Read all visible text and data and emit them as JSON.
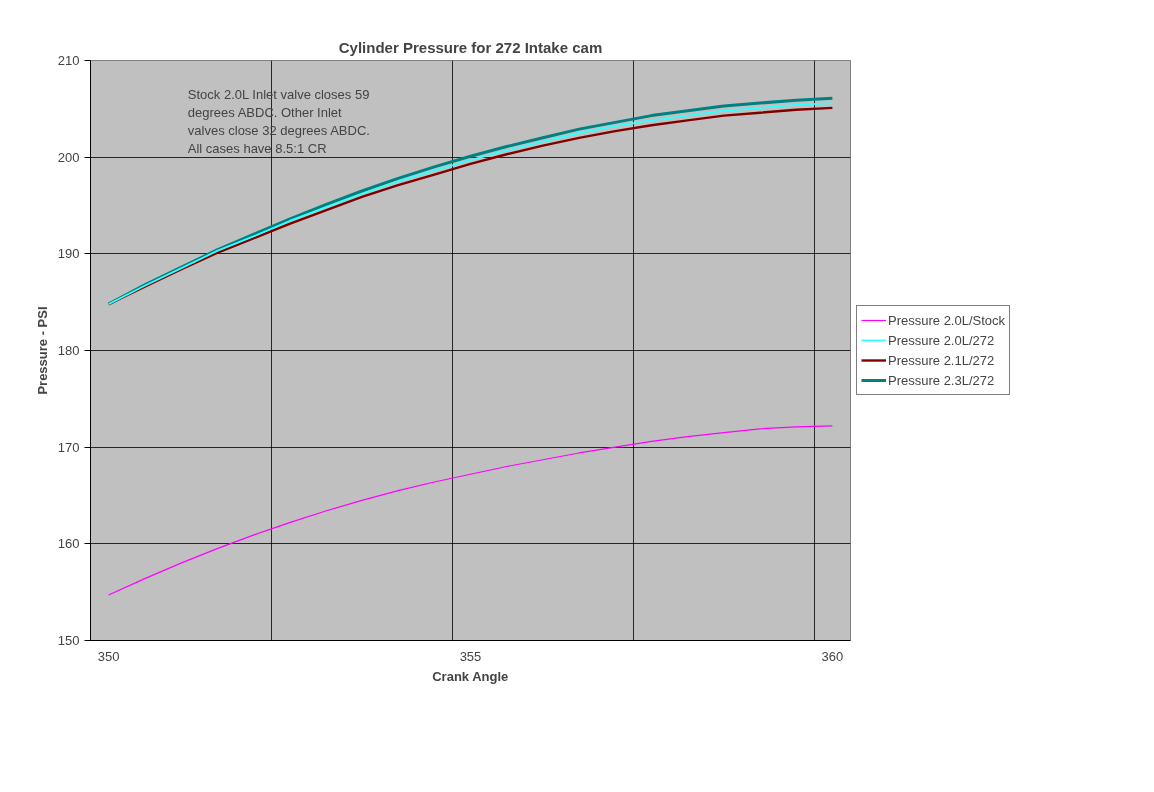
{
  "chart_data": {
    "type": "line",
    "title": "Cylinder Pressure for 272 Intake cam",
    "xlabel": "Crank Angle",
    "ylabel": "Pressure - PSI",
    "x": [
      350,
      350.5,
      351,
      351.5,
      352,
      352.5,
      353,
      353.5,
      354,
      354.5,
      355,
      355.5,
      356,
      356.5,
      357,
      357.5,
      358,
      358.5,
      359,
      359.5,
      360
    ],
    "series": [
      {
        "name": "Pressure 2.0L/Stock",
        "color": "#ff00ff",
        "values": [
          154.7,
          156.4,
          158.0,
          159.5,
          160.9,
          162.2,
          163.4,
          164.5,
          165.5,
          166.4,
          167.2,
          168.0,
          168.7,
          169.4,
          170.0,
          170.6,
          171.1,
          171.5,
          171.9,
          172.1,
          172.2
        ]
      },
      {
        "name": "Pressure 2.0L/272",
        "color": "#33ffff",
        "values": [
          184.8,
          186.7,
          188.5,
          190.3,
          191.8,
          193.4,
          194.8,
          196.2,
          197.5,
          198.6,
          199.7,
          200.7,
          201.6,
          202.5,
          203.2,
          203.8,
          204.3,
          204.8,
          205.1,
          205.4,
          205.6
        ]
      },
      {
        "name": "Pressure 2.1L/272",
        "color": "#800000",
        "values": [
          184.8,
          186.6,
          188.4,
          190.1,
          191.6,
          193.1,
          194.5,
          195.9,
          197.1,
          198.2,
          199.3,
          200.3,
          201.2,
          202.0,
          202.7,
          203.3,
          203.8,
          204.3,
          204.6,
          204.9,
          205.1
        ]
      },
      {
        "name": "Pressure 2.3L/272",
        "color": "#008080",
        "values": [
          184.8,
          186.8,
          188.6,
          190.4,
          192.0,
          193.6,
          195.1,
          196.5,
          197.8,
          199.0,
          200.1,
          201.1,
          202.0,
          202.9,
          203.6,
          204.3,
          204.8,
          205.3,
          205.6,
          205.9,
          206.1
        ]
      }
    ],
    "xlim": [
      349.75,
      360.25
    ],
    "xticks": [
      {
        "value": 350,
        "label": "350"
      },
      {
        "value": 352.25,
        "label": null
      },
      {
        "value": 354.75,
        "label": null
      },
      {
        "value": 355,
        "label": "355"
      },
      {
        "value": 357.25,
        "label": null
      },
      {
        "value": 359.75,
        "label": null
      },
      {
        "value": 360,
        "label": "360"
      }
    ],
    "ylim": [
      150,
      210
    ],
    "yticks": [
      150,
      160,
      170,
      180,
      190,
      200,
      210
    ],
    "annotations": [
      "Stock 2.0L  Inlet valve closes 59\ndegrees ABDC.  Other Inlet\nvalves close 32 degrees ABDC.\nAll cases have 8.5:1 CR"
    ],
    "grid": true,
    "legend": "right",
    "marker": "none",
    "line_style": "solid"
  }
}
